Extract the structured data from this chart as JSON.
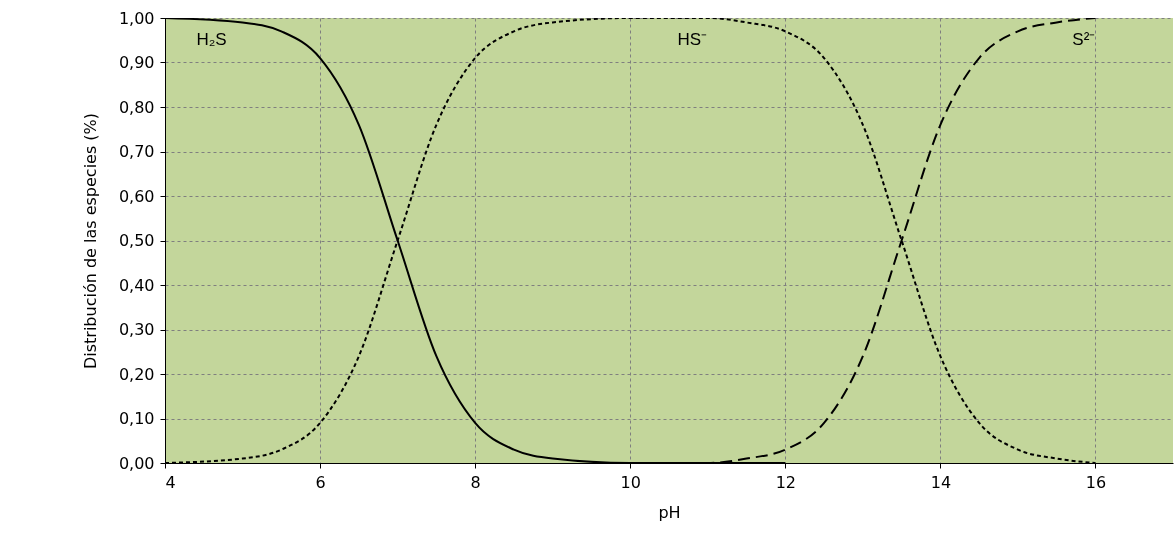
{
  "chart_data": {
    "type": "line",
    "xlabel": "pH",
    "ylabel": "Distribución de las especies (%)",
    "xlim": [
      4,
      17
    ],
    "xticks": [
      4,
      6,
      8,
      10,
      12,
      14,
      16
    ],
    "ylim": [
      0,
      1
    ],
    "yticks": [
      {
        "value": 0,
        "label": "0,00"
      },
      {
        "value": 0.1,
        "label": "0,10"
      },
      {
        "value": 0.2,
        "label": "0,20"
      },
      {
        "value": 0.3,
        "label": "0,30"
      },
      {
        "value": 0.4,
        "label": "0,40"
      },
      {
        "value": 0.5,
        "label": "0,50"
      },
      {
        "value": 0.6,
        "label": "0,60"
      },
      {
        "value": 0.7,
        "label": "0,70"
      },
      {
        "value": 0.8,
        "label": "0,80"
      },
      {
        "value": 0.9,
        "label": "0,90"
      },
      {
        "value": 1,
        "label": "1,00"
      }
    ],
    "grid": true,
    "marker": "none",
    "series": [
      {
        "name": "H₂S",
        "color": "#000000",
        "line_style": "solid",
        "x": [
          4,
          5,
          5.5,
          6,
          6.5,
          7,
          7.5,
          8,
          8.5,
          9,
          10,
          11,
          12
        ],
        "values": [
          1,
          0.99,
          0.97,
          0.91,
          0.76,
          0.5,
          0.24,
          0.09,
          0.03,
          0.01,
          0,
          0,
          0
        ]
      },
      {
        "name": "HS⁻",
        "color": "#000000",
        "line_style": "dotted",
        "x": [
          4,
          5,
          5.5,
          6,
          6.5,
          7,
          7.5,
          8,
          8.5,
          9,
          10,
          11,
          11.5,
          12,
          12.5,
          13,
          13.5,
          14,
          14.5,
          15,
          15.5,
          16
        ],
        "values": [
          0,
          0.01,
          0.03,
          0.09,
          0.24,
          0.5,
          0.76,
          0.91,
          0.97,
          0.99,
          1,
          1,
          0.99,
          0.97,
          0.91,
          0.76,
          0.5,
          0.24,
          0.09,
          0.03,
          0.01,
          0
        ]
      },
      {
        "name": "S²⁻",
        "color": "#000000",
        "line_style": "dashed",
        "x": [
          10,
          11,
          11.5,
          12,
          12.5,
          13,
          13.5,
          14,
          14.5,
          15,
          15.5,
          16
        ],
        "values": [
          0,
          0,
          0.01,
          0.03,
          0.09,
          0.24,
          0.5,
          0.76,
          0.91,
          0.97,
          0.99,
          1
        ]
      }
    ]
  }
}
